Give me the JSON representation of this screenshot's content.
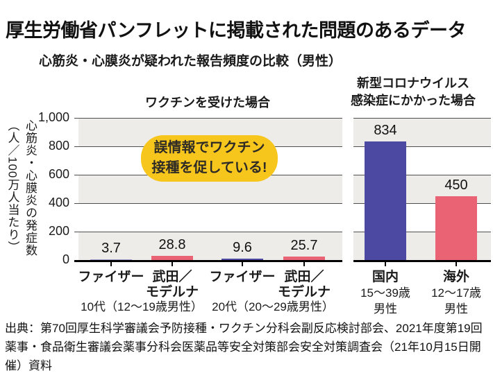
{
  "title": "厚生労働省パンフレットに掲載された問題のあるデータ",
  "subtitle": "心筋炎・心膜炎が疑われた報告頻度の比較（男性）",
  "y_axis": {
    "label_main": "心筋炎・心膜炎の発症数",
    "label_unit": "（人／100万人当たり）",
    "ticks": [
      "1,000",
      "800",
      "600",
      "400",
      "200",
      "0"
    ]
  },
  "callout": {
    "line1": "誤情報でワクチン",
    "line2": "接種を促している!",
    "bg_color": "#f7c61d"
  },
  "colors": {
    "navy": "#4b49a2",
    "pink": "#ea6374",
    "band_gray": "#edece8"
  },
  "chart_data": {
    "type": "bar",
    "ylabel": "心筋炎・心膜炎の発症数（人／100万人当たり）",
    "ylim": [
      0,
      1000
    ],
    "yticks": [
      0,
      200,
      400,
      600,
      800,
      1000
    ],
    "grid": true,
    "panels": [
      {
        "title": "ワクチンを受けた場合",
        "bars": [
          {
            "label": "ファイザー",
            "value": 3.7,
            "color": "#9a9ccf",
            "group": "10代（12～19歳男性）"
          },
          {
            "label": "武田／モデルナ",
            "label_lines": [
              "武田／",
              "モデルナ"
            ],
            "value": 28.8,
            "color": "#ea6374",
            "group": "10代（12～19歳男性）"
          },
          {
            "label": "ファイザー",
            "value": 9.6,
            "color": "#4b49a2",
            "group": "20代（20～29歳男性）"
          },
          {
            "label": "武田／モデルナ",
            "label_lines": [
              "武田／",
              "モデルナ"
            ],
            "value": 25.7,
            "color": "#ea6374",
            "group": "20代（20～29歳男性）"
          }
        ],
        "group_labels": [
          "10代（12～19歳男性）",
          "20代（20～29歳男性）"
        ]
      },
      {
        "title": "新型コロナウイルス感染症にかかった場合",
        "title_lines": [
          "新型コロナウイルス",
          "感染症にかかった場合"
        ],
        "bars": [
          {
            "label": "国内",
            "sub_lines": [
              "15～39歳",
              "男性"
            ],
            "value": 834,
            "color": "#4b49a2"
          },
          {
            "label": "海外",
            "sub_lines": [
              "12～17歳",
              "男性"
            ],
            "value": 450,
            "color": "#ea6374"
          }
        ]
      }
    ]
  },
  "source": "出典：第70回厚生科学審議会予防接種・ワクチン分科会副反応検討部会、2021年度第19回薬事・食品衛生審議会薬事分科会医薬品等安全対策部会安全対策調査会（21年10月15日開催）資料"
}
